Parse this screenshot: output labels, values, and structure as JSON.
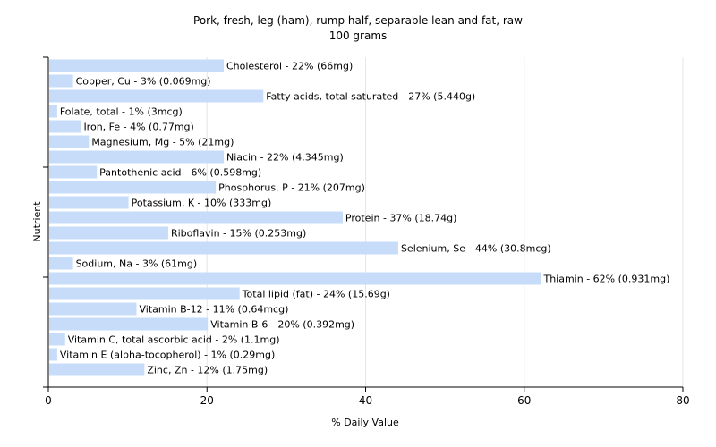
{
  "chart_data": {
    "type": "bar",
    "orientation": "horizontal",
    "title": "Pork, fresh, leg (ham), rump half, separable lean and fat, raw",
    "subtitle": "100 grams",
    "xlabel": "% Daily Value",
    "ylabel": "Nutrient",
    "xlim": [
      0,
      80
    ],
    "xticks": [
      0,
      20,
      40,
      60,
      80
    ],
    "grid": true,
    "bar_color": "#c6dcf9",
    "categories": [
      "Cholesterol",
      "Copper, Cu",
      "Fatty acids, total saturated",
      "Folate, total",
      "Iron, Fe",
      "Magnesium, Mg",
      "Niacin",
      "Pantothenic acid",
      "Phosphorus, P",
      "Potassium, K",
      "Protein",
      "Riboflavin",
      "Selenium, Se",
      "Sodium, Na",
      "Thiamin",
      "Total lipid (fat)",
      "Vitamin B-12",
      "Vitamin B-6",
      "Vitamin C, total ascorbic acid",
      "Vitamin E (alpha-tocopherol)",
      "Zinc, Zn"
    ],
    "values": [
      22,
      3,
      27,
      1,
      4,
      5,
      22,
      6,
      21,
      10,
      37,
      15,
      44,
      3,
      62,
      24,
      11,
      20,
      2,
      1,
      12
    ],
    "labels": [
      "Cholesterol - 22% (66mg)",
      "Copper, Cu - 3% (0.069mg)",
      "Fatty acids, total saturated - 27% (5.440g)",
      "Folate, total - 1% (3mcg)",
      "Iron, Fe - 4% (0.77mg)",
      "Magnesium, Mg - 5% (21mg)",
      "Niacin - 22% (4.345mg)",
      "Pantothenic acid - 6% (0.598mg)",
      "Phosphorus, P - 21% (207mg)",
      "Potassium, K - 10% (333mg)",
      "Protein - 37% (18.74g)",
      "Riboflavin - 15% (0.253mg)",
      "Selenium, Se - 44% (30.8mcg)",
      "Sodium, Na - 3% (61mg)",
      "Thiamin - 62% (0.931mg)",
      "Total lipid (fat) - 24% (15.69g)",
      "Vitamin B-12 - 11% (0.64mcg)",
      "Vitamin B-6 - 20% (0.392mg)",
      "Vitamin C, total ascorbic acid - 2% (1.1mg)",
      "Vitamin E (alpha-tocopherol) - 1% (0.29mg)",
      "Zinc, Zn - 12% (1.75mg)"
    ]
  }
}
